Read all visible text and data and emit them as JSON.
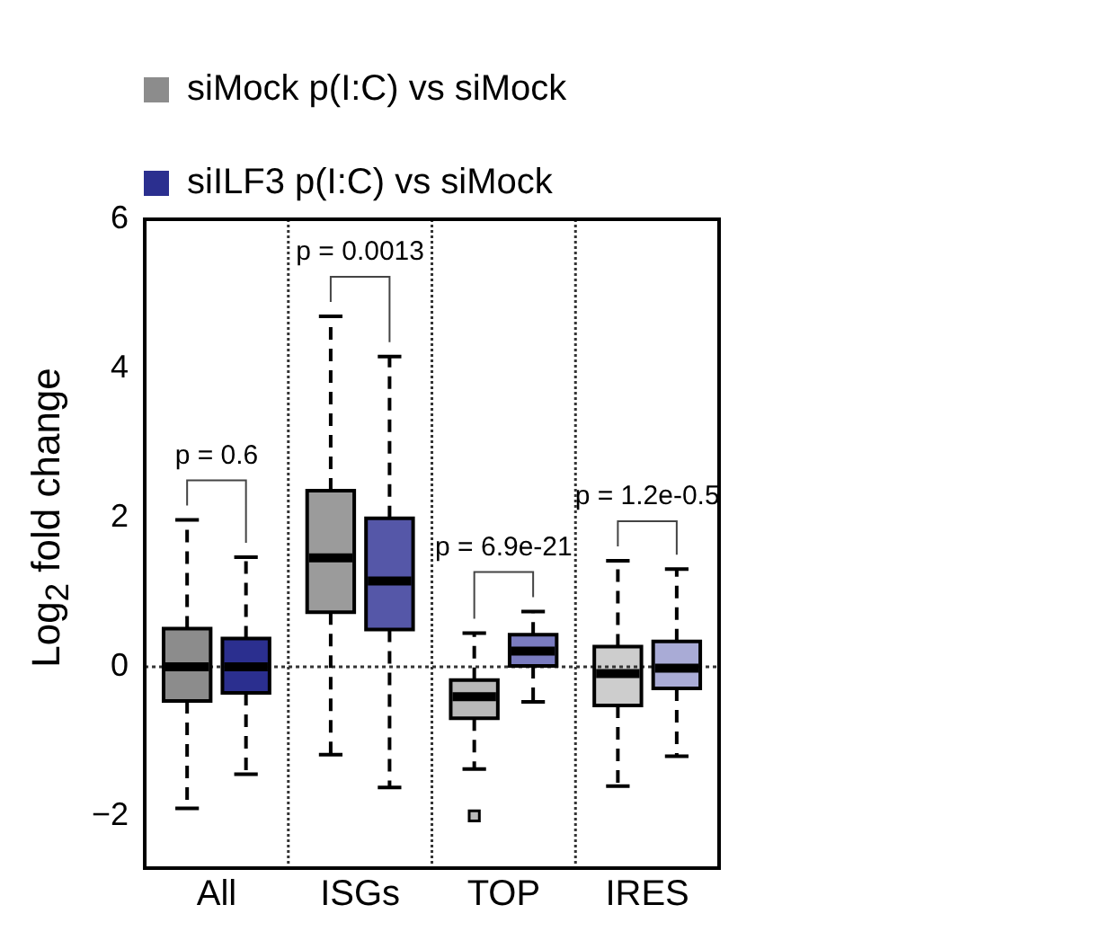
{
  "chart_data": {
    "type": "box",
    "ylabel": "Log$_{2}$ fold change",
    "categories": [
      "All",
      "ISGs",
      "TOP",
      "IRES"
    ],
    "series": [
      {
        "name": "siMock p(I:C) vs siMock",
        "color": "#8c8c8c",
        "colors": [
          "#8c8c8c",
          "#9b9b9b",
          "#b9b9b9",
          "#cdcdcd"
        ],
        "boxes": [
          {
            "low": -1.9,
            "q1": -0.46,
            "median": 0,
            "q3": 0.51,
            "high": 1.97
          },
          {
            "low": -1.18,
            "q1": 0.73,
            "median": 1.46,
            "q3": 2.36,
            "high": 4.7
          },
          {
            "low": -1.37,
            "q1": -0.69,
            "median": -0.4,
            "q3": -0.18,
            "high": 0.45,
            "outliers": [
              -2.0
            ]
          },
          {
            "low": -1.6,
            "q1": -0.52,
            "median": -0.09,
            "q3": 0.27,
            "high": 1.42
          }
        ]
      },
      {
        "name": "siILF3 p(I:C) vs siMock",
        "color": "#2b2f8f",
        "colors": [
          "#2b2f8f",
          "#5557a8",
          "#7a7cc0",
          "#a9abd6"
        ],
        "boxes": [
          {
            "low": -1.44,
            "q1": -0.35,
            "median": 0,
            "q3": 0.38,
            "high": 1.47
          },
          {
            "low": -1.62,
            "q1": 0.5,
            "median": 1.15,
            "q3": 1.99,
            "high": 4.16
          },
          {
            "low": -0.47,
            "q1": 0.01,
            "median": 0.21,
            "q3": 0.43,
            "high": 0.74
          },
          {
            "low": -1.2,
            "q1": -0.29,
            "median": -0.02,
            "q3": 0.34,
            "high": 1.31
          }
        ]
      }
    ],
    "ylim": [
      -2.7,
      6
    ],
    "yticks": [
      {
        "value": -2,
        "label": "−2"
      },
      0,
      2,
      4,
      6
    ],
    "grid": "x",
    "legend": "top left",
    "ref_lines": [
      {
        "axis": "y",
        "value": 0,
        "line_style": "dotted"
      }
    ],
    "annotations": [
      "p = 0.6",
      "p = 0.0013",
      "p = 6.9e-21",
      "p = 1.2e-0.5"
    ]
  }
}
